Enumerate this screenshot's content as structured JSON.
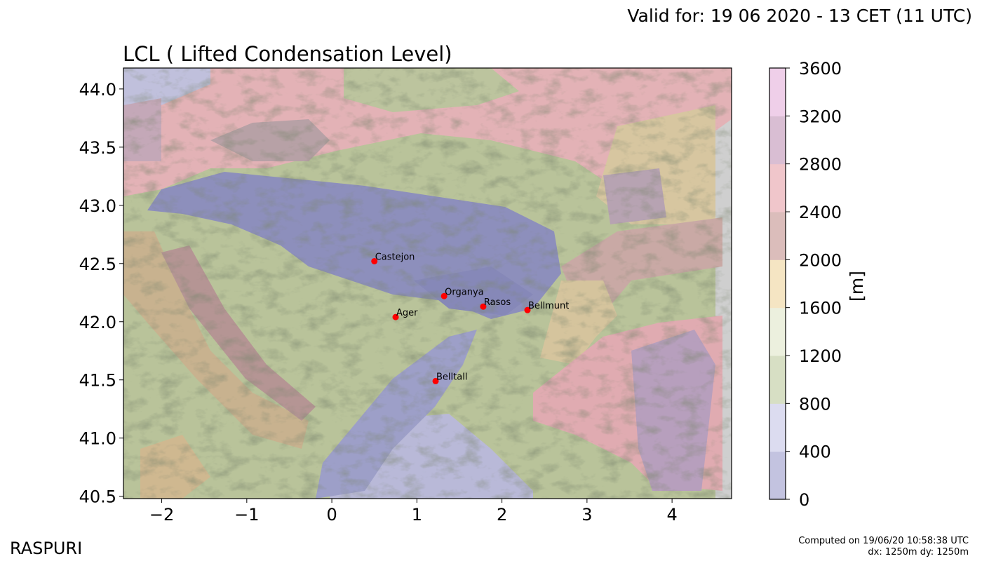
{
  "header": {
    "valid_for": "Valid for: 19 06 2020 - 13 CET (11 UTC)",
    "title": "LCL ( Lifted Condensation Level)"
  },
  "map": {
    "x_axis": {
      "range": [
        -2.45,
        4.7
      ],
      "ticks": [
        "−2",
        "−1",
        "0",
        "1",
        "2",
        "3",
        "4"
      ],
      "tick_values": [
        -2,
        -1,
        0,
        1,
        2,
        3,
        4
      ]
    },
    "y_axis": {
      "range": [
        40.48,
        44.18
      ],
      "ticks": [
        "44.0",
        "43.5",
        "43.0",
        "42.5",
        "42.0",
        "41.5",
        "41.0",
        "40.5"
      ],
      "tick_values": [
        44.0,
        43.5,
        43.0,
        42.5,
        42.0,
        41.5,
        41.0,
        40.5
      ]
    },
    "stations": [
      {
        "name": "Castejon",
        "lon": 0.5,
        "lat": 42.52
      },
      {
        "name": "Organya",
        "lon": 1.32,
        "lat": 42.22
      },
      {
        "name": "Rasos",
        "lon": 1.78,
        "lat": 42.13
      },
      {
        "name": "Bellmunt",
        "lon": 2.3,
        "lat": 42.1
      },
      {
        "name": "Ager",
        "lon": 0.75,
        "lat": 42.04
      },
      {
        "name": "Belltall",
        "lon": 1.22,
        "lat": 41.49
      }
    ],
    "station_color": "#ff0000"
  },
  "colorbar": {
    "label": "[m]",
    "ticks": [
      "0",
      "400",
      "800",
      "1200",
      "1600",
      "2000",
      "2400",
      "2800",
      "3200",
      "3600"
    ],
    "colors": [
      "#c3c3e0",
      "#dcdcf0",
      "#d7dfc4",
      "#ecf0de",
      "#f5e5c3",
      "#dbbdbb",
      "#f0c6cb",
      "#d9bed3",
      "#efcfe9"
    ]
  },
  "footer": {
    "brand": "RASPURI",
    "computed_line1": "Computed on 19/06/20 10:58:38 UTC",
    "computed_line2": "dx: 1250m dy: 1250m"
  }
}
